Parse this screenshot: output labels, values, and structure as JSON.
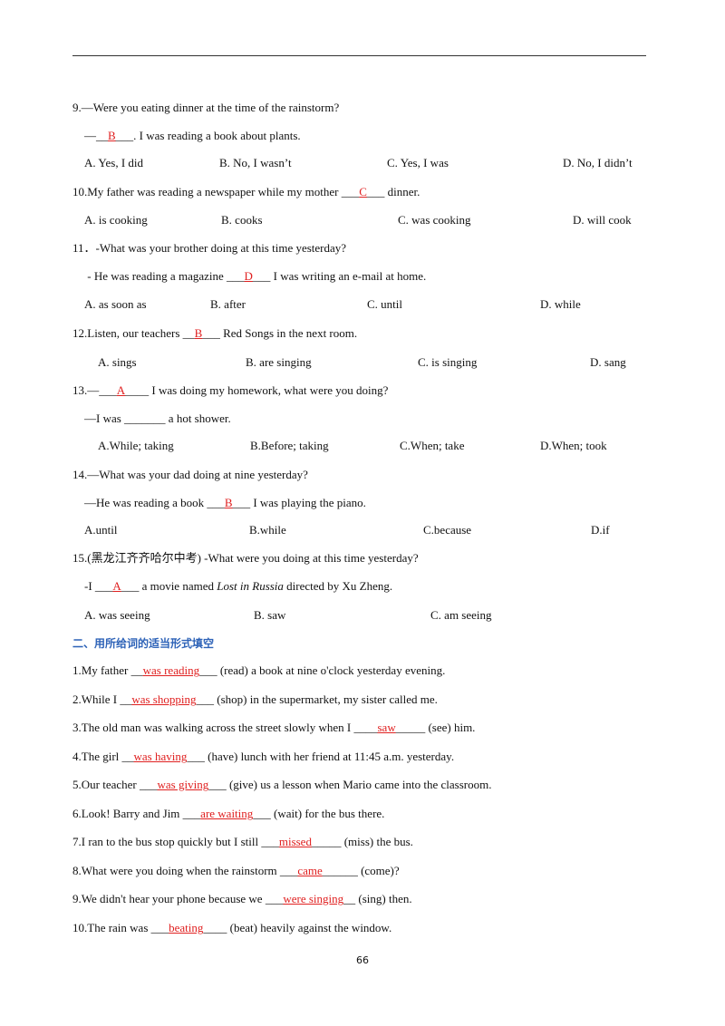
{
  "choice": [
    {
      "segments": [
        {
          "text": "9.—Were you eating dinner at the time of the rainstorm?"
        }
      ]
    },
    {
      "segments": [
        {
          "text": "—__"
        },
        {
          "answer": "B"
        },
        {
          "text": "___. I was reading a book about plants."
        }
      ]
    },
    {
      "options": [
        "A. Yes, I did",
        "B. No, I wasn’t",
        "C. Yes, I was",
        "D. No, I didn’t"
      ]
    },
    {
      "segments": [
        {
          "text": "10.My father was reading a newspaper while my mother ___"
        },
        {
          "answer": "C"
        },
        {
          "text": "___ dinner."
        }
      ]
    },
    {
      "options": [
        "A. is cooking",
        "B. cooks",
        "C. was cooking",
        "D. will cook"
      ]
    },
    {
      "segments": [
        {
          "text": "11．-What was your brother doing at this time yesterday?"
        }
      ]
    },
    {
      "segments": [
        {
          "text": " - He was reading a magazine ___"
        },
        {
          "answer": "D"
        },
        {
          "text": "___ I was writing an e-mail at home."
        }
      ]
    },
    {
      "options": [
        "A. as soon as",
        "B. after",
        "C. until",
        "D. while"
      ]
    },
    {
      "segments": [
        {
          "text": "12.Listen, our teachers __"
        },
        {
          "answer": "B"
        },
        {
          "text": "___ Red Songs in the next room."
        }
      ]
    },
    {
      "options": [
        "A. sings",
        "B. are singing",
        "C. is singing",
        "D. sang"
      ]
    },
    {
      "segments": [
        {
          "text": "13.—___"
        },
        {
          "answer": "A"
        },
        {
          "text": "____ I was doing my homework, what were you doing?"
        }
      ]
    },
    {
      "segments": [
        {
          "text": "—I was _______ a hot shower."
        }
      ]
    },
    {
      "options": [
        "A.While; taking",
        "B.Before; taking",
        "C.When; take",
        "D.When; took"
      ]
    },
    {
      "segments": [
        {
          "text": "14.—What was your dad doing at nine yesterday?"
        }
      ]
    },
    {
      "segments": [
        {
          "text": "—He was reading a book ___"
        },
        {
          "answer": "B"
        },
        {
          "text": "___ I was playing the piano."
        }
      ]
    },
    {
      "options": [
        "A.until",
        "B.while",
        "C.because",
        "D.if"
      ]
    },
    {
      "segments": [
        {
          "text": "15.(黑龙江齐齐哈尔中考) -What were you doing at this time yesterday?"
        }
      ]
    },
    {
      "segments": [
        {
          "text": "-I ___"
        },
        {
          "answer": "A"
        },
        {
          "text": "___ a movie named "
        },
        {
          "italic": "Lost in Russia"
        },
        {
          "text": " directed by Xu Zheng."
        }
      ]
    },
    {
      "options": [
        "A. was seeing",
        "B. saw",
        "C. am seeing"
      ]
    }
  ],
  "section_title": "二、用所给词的适当形式填空",
  "fill": [
    {
      "segments": [
        {
          "text": "1.My father __"
        },
        {
          "answer": "was reading"
        },
        {
          "text": "___ (read) a book at nine o'clock yesterday evening."
        }
      ]
    },
    {
      "segments": [
        {
          "text": "2.While I __"
        },
        {
          "answer": "was shopping"
        },
        {
          "text": "___ (shop) in the supermarket, my sister called me."
        }
      ]
    },
    {
      "segments": [
        {
          "text": "3.The old man was walking across the street slowly when I ____"
        },
        {
          "answer": "saw"
        },
        {
          "text": "_____ (see) him."
        }
      ]
    },
    {
      "segments": [
        {
          "text": "4.The girl __"
        },
        {
          "answer": "was having"
        },
        {
          "text": "___ (have) lunch with her friend at 11:45 a.m. yesterday."
        }
      ]
    },
    {
      "segments": [
        {
          "text": "5.Our teacher ___"
        },
        {
          "answer": "was giving"
        },
        {
          "text": "___ (give) us a lesson when Mario came into the classroom."
        }
      ]
    },
    {
      "segments": [
        {
          "text": "6.Look! Barry and Jim ___"
        },
        {
          "answer": "are waiting"
        },
        {
          "text": "___ (wait) for the bus there."
        }
      ]
    },
    {
      "segments": [
        {
          "text": "7.I ran to the bus stop quickly but I still ___"
        },
        {
          "answer": "missed"
        },
        {
          "text": "_____ (miss) the bus."
        }
      ]
    },
    {
      "segments": [
        {
          "text": "8.What were you doing when the rainstorm ___"
        },
        {
          "answer": "came"
        },
        {
          "text": "______ (come)?"
        }
      ]
    },
    {
      "segments": [
        {
          "text": "9.We didn't hear your phone because we ___"
        },
        {
          "answer": "were singing"
        },
        {
          "text": "__ (sing) then."
        }
      ]
    },
    {
      "segments": [
        {
          "text": "10.The rain was ___"
        },
        {
          "answer": "beating"
        },
        {
          "text": "____ (beat) heavily against the window."
        }
      ]
    }
  ],
  "page_number": "66"
}
